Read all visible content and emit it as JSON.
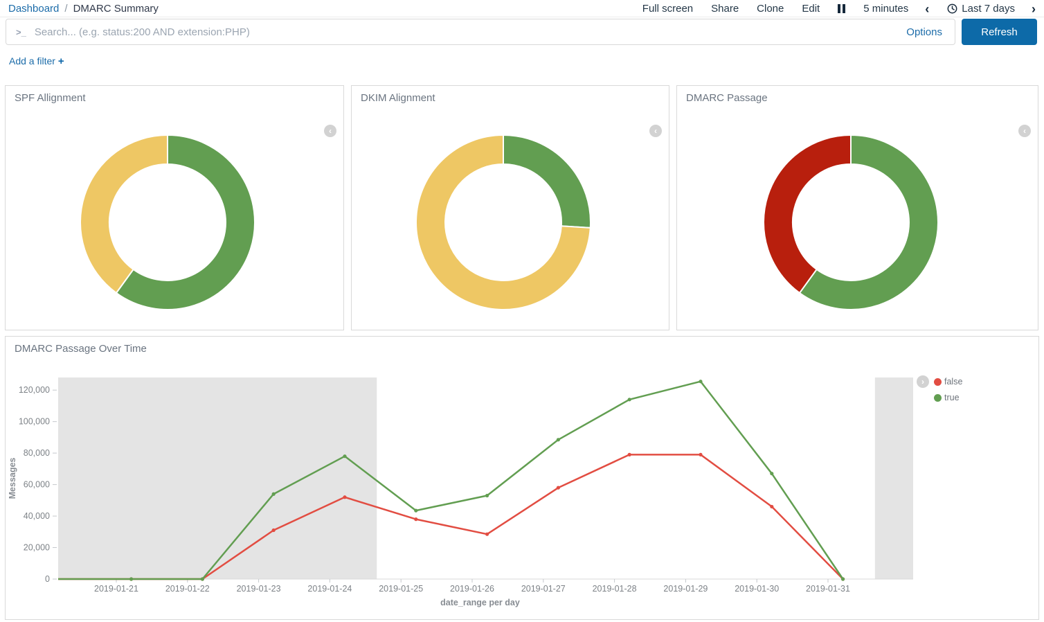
{
  "header": {
    "breadcrumb_root": "Dashboard",
    "breadcrumb_separator": "/",
    "page_title": "DMARC Summary",
    "menu": [
      "Full screen",
      "Share",
      "Clone",
      "Edit"
    ],
    "refresh_interval": "5 minutes",
    "time_range": "Last 7 days"
  },
  "query_bar": {
    "placeholder": "Search... (e.g. status:200 AND extension:PHP)",
    "value": "",
    "options_label": "Options",
    "refresh_label": "Refresh"
  },
  "filter_bar": {
    "add_filter_label": "Add a filter"
  },
  "icons": {
    "chevron_left": "‹",
    "chevron_right": "›",
    "terminal_prompt": ">_",
    "plus": "+"
  },
  "colors": {
    "green": "#629E51",
    "yellow": "#EEC764",
    "red": "#B81F0D",
    "line_false": "#E24D42",
    "line_true": "#629E51",
    "band": "#E4E4E4",
    "link_blue": "#1C6CA9",
    "refresh_button_blue": "#0D6AA8"
  },
  "chart_data": [
    {
      "type": "pie",
      "donut": true,
      "title": "SPF Allignment",
      "labels": [
        "true",
        "false"
      ],
      "values": [
        60,
        40
      ],
      "colors": [
        "#629E51",
        "#EEC764"
      ]
    },
    {
      "type": "pie",
      "donut": true,
      "title": "DKIM Alignment",
      "labels": [
        "true",
        "false"
      ],
      "values": [
        26,
        74
      ],
      "colors": [
        "#629E51",
        "#EEC764"
      ]
    },
    {
      "type": "pie",
      "donut": true,
      "title": "DMARC Passage",
      "labels": [
        "true",
        "false"
      ],
      "values": [
        60,
        40
      ],
      "colors": [
        "#629E51",
        "#B81F0D"
      ]
    },
    {
      "type": "line",
      "title": "DMARC Passage Over Time",
      "xlabel": "date_range per day",
      "ylabel": "Messages",
      "x": [
        "2019-01-21",
        "2019-01-22",
        "2019-01-23",
        "2019-01-24",
        "2019-01-25",
        "2019-01-26",
        "2019-01-27",
        "2019-01-28",
        "2019-01-29",
        "2019-01-30",
        "2019-01-31"
      ],
      "series": [
        {
          "name": "false",
          "color": "#E24D42",
          "values": [
            0,
            0,
            31000,
            52000,
            38000,
            28500,
            58000,
            79000,
            79000,
            46000,
            0
          ]
        },
        {
          "name": "true",
          "color": "#629E51",
          "values": [
            0,
            0,
            54000,
            78000,
            43500,
            53000,
            88500,
            114000,
            125500,
            67000,
            0
          ]
        }
      ],
      "ylim": [
        0,
        128000
      ],
      "yticks": [
        0,
        20000,
        40000,
        60000,
        80000,
        100000,
        120000
      ],
      "grid": false,
      "legend_position": "right",
      "legend": [
        "false",
        "true"
      ],
      "point_offset_days": 0.21,
      "shaded_day_ranges": [
        [
          -0.82,
          3.66
        ],
        [
          10.66,
          11.2
        ]
      ]
    }
  ]
}
